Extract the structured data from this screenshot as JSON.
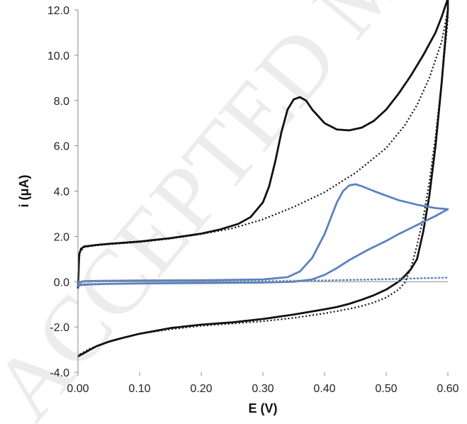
{
  "watermark": "ACCEPTED MANUSCRIPT",
  "chart_data": {
    "type": "line",
    "title": "",
    "xlabel": "E (V)",
    "ylabel": "i (μA)",
    "xlim": [
      0.0,
      0.6
    ],
    "ylim": [
      -4.0,
      12.0
    ],
    "xticks": [
      "0.00",
      "0.10",
      "0.20",
      "0.30",
      "0.40",
      "0.50",
      "0.60"
    ],
    "yticks": [
      "-4.0",
      "-2.0",
      "0.0",
      "2.0",
      "4.0",
      "6.0",
      "8.0",
      "10.0",
      "12.0"
    ],
    "grid": false,
    "legend": "none",
    "series": [
      {
        "color": "#111111",
        "style": "solid",
        "x": [
          0.0,
          0.001,
          0.002,
          0.005,
          0.01,
          0.03,
          0.05,
          0.1,
          0.15,
          0.2,
          0.23,
          0.26,
          0.28,
          0.3,
          0.31,
          0.32,
          0.33,
          0.34,
          0.35,
          0.36,
          0.37,
          0.38,
          0.4,
          0.42,
          0.44,
          0.46,
          0.48,
          0.5,
          0.52,
          0.54,
          0.56,
          0.58,
          0.59,
          0.6,
          0.6,
          0.595,
          0.59,
          0.58,
          0.57,
          0.56,
          0.55,
          0.54,
          0.53,
          0.52,
          0.5,
          0.48,
          0.46,
          0.44,
          0.42,
          0.4,
          0.35,
          0.3,
          0.25,
          0.2,
          0.15,
          0.1,
          0.07,
          0.05,
          0.03,
          0.02,
          0.01,
          0.0
        ],
        "y": [
          -0.3,
          0.5,
          1.2,
          1.45,
          1.55,
          1.62,
          1.67,
          1.77,
          1.92,
          2.12,
          2.3,
          2.55,
          2.85,
          3.5,
          4.2,
          5.3,
          6.6,
          7.6,
          8.05,
          8.15,
          8.0,
          7.6,
          7.0,
          6.72,
          6.68,
          6.8,
          7.1,
          7.6,
          8.3,
          9.1,
          10.0,
          11.0,
          11.7,
          12.5,
          12.0,
          10.4,
          8.8,
          6.0,
          3.8,
          2.2,
          1.0,
          0.55,
          0.25,
          0.0,
          -0.35,
          -0.6,
          -0.8,
          -0.98,
          -1.12,
          -1.22,
          -1.45,
          -1.65,
          -1.8,
          -1.9,
          -2.05,
          -2.3,
          -2.5,
          -2.65,
          -2.85,
          -3.0,
          -3.15,
          -3.3
        ]
      },
      {
        "color": "#111111",
        "style": "dotted",
        "x": [
          0.0,
          0.001,
          0.003,
          0.01,
          0.03,
          0.05,
          0.1,
          0.15,
          0.2,
          0.25,
          0.3,
          0.35,
          0.4,
          0.45,
          0.5,
          0.53,
          0.55,
          0.57,
          0.59,
          0.6,
          0.6,
          0.59,
          0.58,
          0.57,
          0.56,
          0.55,
          0.54,
          0.53,
          0.52,
          0.5,
          0.48,
          0.46,
          0.44,
          0.4,
          0.35,
          0.3,
          0.25,
          0.2,
          0.15,
          0.1,
          0.05,
          0.02,
          0.01,
          0.0
        ],
        "y": [
          -0.3,
          0.6,
          1.3,
          1.52,
          1.6,
          1.65,
          1.75,
          1.9,
          2.1,
          2.35,
          2.75,
          3.3,
          3.95,
          4.8,
          5.9,
          6.9,
          7.8,
          9.0,
          10.6,
          12.0,
          11.6,
          8.8,
          6.4,
          4.4,
          2.8,
          1.6,
          0.6,
          -0.05,
          -0.35,
          -0.7,
          -0.92,
          -1.08,
          -1.2,
          -1.4,
          -1.6,
          -1.75,
          -1.85,
          -1.95,
          -2.1,
          -2.3,
          -2.65,
          -2.95,
          -3.1,
          -3.25
        ]
      },
      {
        "color": "#5b82c0",
        "style": "solid",
        "x": [
          0.0,
          0.002,
          0.005,
          0.01,
          0.05,
          0.1,
          0.2,
          0.3,
          0.34,
          0.36,
          0.38,
          0.4,
          0.41,
          0.42,
          0.43,
          0.44,
          0.45,
          0.46,
          0.48,
          0.5,
          0.52,
          0.55,
          0.58,
          0.6,
          0.58,
          0.55,
          0.52,
          0.5,
          0.47,
          0.44,
          0.42,
          0.4,
          0.38,
          0.35,
          0.3,
          0.2,
          0.1,
          0.05,
          0.02,
          0.005,
          0.0
        ],
        "y": [
          -0.2,
          -0.05,
          0.0,
          0.02,
          0.04,
          0.05,
          0.06,
          0.1,
          0.2,
          0.45,
          1.05,
          2.1,
          2.8,
          3.5,
          4.0,
          4.25,
          4.3,
          4.22,
          4.0,
          3.8,
          3.6,
          3.4,
          3.25,
          3.2,
          2.9,
          2.5,
          2.1,
          1.8,
          1.4,
          0.95,
          0.6,
          0.3,
          0.1,
          0.0,
          -0.04,
          -0.06,
          -0.08,
          -0.1,
          -0.12,
          -0.15,
          -0.2
        ]
      },
      {
        "color": "#5b82c0",
        "style": "dotted",
        "x": [
          0.0,
          0.01,
          0.1,
          0.2,
          0.3,
          0.4,
          0.5,
          0.6,
          0.5,
          0.4,
          0.3,
          0.2,
          0.1,
          0.01,
          0.0
        ],
        "y": [
          -0.12,
          0.0,
          0.02,
          0.03,
          0.04,
          0.06,
          0.1,
          0.18,
          0.12,
          0.05,
          -0.02,
          -0.05,
          -0.08,
          -0.1,
          -0.12
        ]
      }
    ]
  }
}
